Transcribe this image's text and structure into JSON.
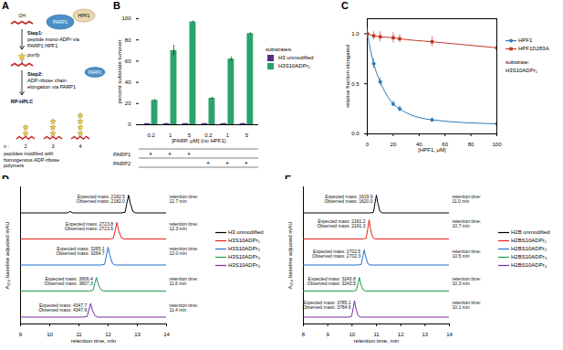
{
  "panel_a": {
    "panel": "A",
    "enzymes": [
      "PARP1",
      "HPF1"
    ],
    "residue": "OH",
    "step1": {
      "title": "Step1:",
      "text": "peptide mono-ADPr via PARP1:HPF1"
    },
    "purify": "purify",
    "step2": {
      "title": "Step2:",
      "text": "ADP-ribose chain elongation via PARP1"
    },
    "method": "RP-HPLC",
    "n_label": "n :",
    "n_values": [
      2,
      3,
      4
    ],
    "caption": "peptides modified with homogenous ADP-ribose polymers"
  },
  "chart_data": [
    {
      "panel": "B",
      "type": "bar",
      "xlabel": "[PARP, μM] (no HPF1)",
      "ylabel": "percent substrate turnover",
      "categories": [
        0.2,
        1,
        5,
        0.2,
        1,
        5
      ],
      "series": [
        {
          "name": "H3 unmodified",
          "color": "#5b2c83",
          "values": [
            1,
            1,
            1,
            1,
            1,
            1
          ],
          "errors": [
            0.3,
            0.3,
            0.3,
            0.3,
            0.3,
            0.3
          ]
        },
        {
          "name": "H3S10ADPr₁",
          "color": "#2ba36c",
          "values": [
            23,
            70,
            97,
            25,
            62,
            86
          ],
          "errors": [
            1,
            5,
            1,
            1,
            2,
            1
          ]
        }
      ],
      "ylim": [
        0,
        100
      ],
      "yticks": [
        0,
        20,
        40,
        60,
        80,
        100
      ],
      "legend": "right",
      "legend_title": "substrates:",
      "table": {
        "rows": [
          {
            "name": "PARP1",
            "cells": [
              "+",
              "+",
              "+",
              null,
              null,
              null
            ]
          },
          {
            "name": "PARP2",
            "cells": [
              null,
              null,
              null,
              "+",
              "+",
              "+"
            ]
          }
        ]
      }
    },
    {
      "panel": "C",
      "type": "line",
      "xlabel": "[HPF1, μM]",
      "ylabel": "relative fraction elongated",
      "x": [
        0,
        5,
        10,
        20,
        25,
        50,
        100
      ],
      "series": [
        {
          "name": "HPF1",
          "color": "#2c7bb6",
          "marker": "circle",
          "values": [
            1.0,
            0.7,
            0.52,
            0.3,
            0.25,
            0.14,
            0.1
          ],
          "errors": [
            0.02,
            0.05,
            0.04,
            0.03,
            0.03,
            0.02,
            0.02
          ]
        },
        {
          "name": "HPF1D283A",
          "color": "#c0392b",
          "marker": "square",
          "values": [
            1.0,
            0.98,
            0.97,
            0.96,
            0.95,
            0.92,
            0.86
          ],
          "errors": [
            0.05,
            0.04,
            0.05,
            0.05,
            0.04,
            0.05,
            0.06
          ]
        }
      ],
      "xlim": [
        0,
        100
      ],
      "xticks": [
        0,
        20,
        40,
        60,
        80,
        100
      ],
      "ylim": [
        0,
        1.15
      ],
      "yticks": [
        {
          "value": 0,
          "label": "0.0"
        },
        {
          "value": 0.5,
          "label": "0.5"
        },
        {
          "value": 1,
          "label": "1.0"
        }
      ],
      "legend": "right",
      "substrate_title": "substrate:",
      "substrate": "H3S10ADPr₁"
    },
    {
      "panel": "D",
      "type": "line",
      "xlabel": "retention time, min",
      "ylabel": "A₂₁₄ baseline adjusted mAU",
      "xlim": [
        9,
        14
      ],
      "xticks": [
        9,
        10,
        11,
        12,
        13,
        14
      ],
      "ylim": [
        0,
        100
      ],
      "tick_labels": "x",
      "legend": "right",
      "series": [
        {
          "name": "H3 unmodified",
          "color": "#000000",
          "x": [
            9,
            10.6,
            10.7,
            10.8,
            12.45,
            12.58,
            12.65,
            12.7,
            12.76,
            12.85,
            12.95,
            14
          ],
          "values": [
            81,
            81,
            82,
            81,
            81,
            81.5,
            89,
            94,
            88,
            82,
            81,
            81
          ],
          "annotation": "Expected mass: 2182.5\nObserved mass: 2182.0",
          "retention": "retention time:\n12.7 min"
        },
        {
          "name": "H3S10ADPr₁",
          "color": "#e3211c",
          "x": [
            9,
            12.05,
            12.18,
            12.25,
            12.3,
            12.36,
            12.45,
            12.55,
            14
          ],
          "values": [
            62,
            62,
            62.5,
            69,
            74,
            68,
            63,
            62,
            62
          ],
          "annotation": "Expected mass: 2723.8\nObserved mass: 2723.5",
          "retention": "retention time:\n12.3 min"
        },
        {
          "name": "H3S10ADPr₂",
          "color": "#1f6fd1",
          "x": [
            9,
            11.75,
            11.88,
            11.95,
            12.0,
            12.06,
            12.15,
            12.25,
            14
          ],
          "values": [
            43,
            43,
            43.5,
            51,
            56,
            50,
            44,
            43,
            43
          ],
          "annotation": "Expected mass: 3265.1\nObserved mass: 3264.7",
          "retention": "retention time:\n12.0 min"
        },
        {
          "name": "H3S10ADPr₃",
          "color": "#1e9c4a",
          "x": [
            9,
            11.35,
            11.48,
            11.55,
            11.6,
            11.66,
            11.75,
            11.85,
            14
          ],
          "values": [
            24,
            24,
            24.5,
            30,
            34,
            29,
            25,
            24,
            24
          ],
          "annotation": "Expected mass: 3806.4\nObserved mass: 3807.3",
          "retention": "retention time:\n11.6 min"
        },
        {
          "name": "H3S10ADPr₄",
          "color": "#7a2ea0",
          "x": [
            9,
            11.15,
            11.28,
            11.35,
            11.4,
            11.46,
            11.55,
            11.65,
            14
          ],
          "values": [
            5,
            5,
            5.5,
            11,
            15,
            10,
            6,
            5,
            5
          ],
          "annotation": "Expected mass: 4347.7\nObserved mass: 4347.6",
          "retention": "retention time:\n11.4 min"
        }
      ]
    },
    {
      "panel": "E",
      "type": "line",
      "xlabel": "retention time, min",
      "ylabel": "A₂₁₄ baseline adjusted mAU",
      "xlim": [
        8,
        14
      ],
      "xticks": [
        8,
        9,
        10,
        11,
        12,
        13,
        14
      ],
      "ylim": [
        0,
        100
      ],
      "tick_labels": "x",
      "legend": "right",
      "series": [
        {
          "name": "H2B unmodified",
          "color": "#000000",
          "x": [
            8,
            10.75,
            10.88,
            10.95,
            11.0,
            11.06,
            11.15,
            11.25,
            14
          ],
          "values": [
            81,
            81,
            81.5,
            89,
            94,
            88,
            82,
            81,
            81
          ],
          "annotation": "Expected mass: 1619.9\nObserved mass: 1620.0",
          "retention": "retention time:\n11.0 min"
        },
        {
          "name": "H2BS10ADPr₁",
          "color": "#e3211c",
          "x": [
            8,
            10.45,
            10.58,
            10.65,
            10.7,
            10.76,
            10.85,
            10.95,
            14
          ],
          "values": [
            62,
            62,
            62.5,
            70,
            76,
            69,
            63,
            62,
            62
          ],
          "annotation": "Expected mass: 2161.2\nObserved mass: 2161.3",
          "retention": "retention time:\n10.7 min"
        },
        {
          "name": "H2BS10ADPr₂",
          "color": "#1f6fd1",
          "x": [
            8,
            10.25,
            10.38,
            10.45,
            10.5,
            10.56,
            10.65,
            10.75,
            14
          ],
          "values": [
            43,
            43,
            43.5,
            50,
            54,
            49,
            44,
            43,
            43
          ],
          "annotation": "Expected mass: 2702.5\nObserved mass: 2702.3",
          "retention": "retention time:\n10.5 min"
        },
        {
          "name": "H2BS10ADPr₃",
          "color": "#1e9c4a",
          "x": [
            8,
            10.05,
            10.18,
            10.25,
            10.3,
            10.36,
            10.45,
            10.55,
            14
          ],
          "values": [
            24,
            24,
            24.5,
            30,
            34,
            29,
            25,
            24,
            24
          ],
          "annotation": "Expected mass: 3243.8\nObserved mass: 3243.5",
          "retention": "retention time:\n10.3 min"
        },
        {
          "name": "H2BS10ADPr₄",
          "color": "#7a2ea0",
          "x": [
            8,
            9.85,
            9.98,
            10.05,
            10.1,
            10.16,
            10.25,
            10.35,
            14
          ],
          "values": [
            5,
            5,
            5.5,
            12,
            17,
            11,
            6,
            5,
            5
          ],
          "annotation": "Expected mass: 3785.1\nObserved mass: 3784.6",
          "retention": "retention time:\n10.1 min"
        }
      ]
    }
  ]
}
